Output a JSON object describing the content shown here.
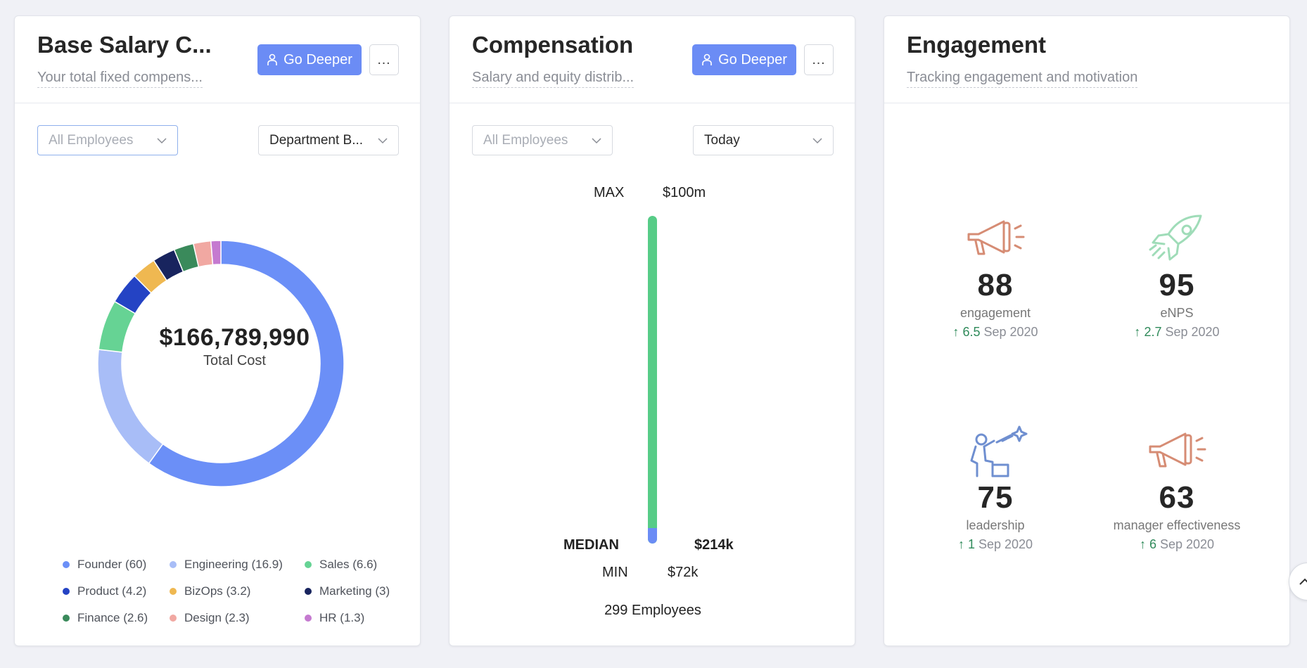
{
  "cards": {
    "base_salary": {
      "title": "Base Salary C...",
      "subtitle": "Your total fixed compens...",
      "deeper_label": "Go Deeper",
      "more_label": "…",
      "filter_employees": "All Employees",
      "filter_group": "Department B...",
      "total_value": "$166,789,990",
      "total_label": "Total Cost"
    },
    "compensation": {
      "title": "Compensation",
      "subtitle": "Salary and equity distrib...",
      "deeper_label": "Go Deeper",
      "more_label": "…",
      "filter_employees": "All Employees",
      "filter_date": "Today",
      "max_label": "MAX",
      "max_value": "$100m",
      "median_label": "MEDIAN",
      "median_value": "$214k",
      "min_label": "MIN",
      "min_value": "$72k",
      "employees": "299 Employees",
      "bar_color": "#57cc87",
      "median_color": "#6b8cf5"
    },
    "engagement": {
      "title": "Engagement",
      "subtitle": "Tracking engagement and motivation",
      "metrics": [
        {
          "value": "88",
          "label": "engagement",
          "delta": "6.5",
          "date": "Sep 2020",
          "icon": "megaphone-icon"
        },
        {
          "value": "95",
          "label": "eNPS",
          "delta": "2.7",
          "date": "Sep 2020",
          "icon": "rocket-icon"
        },
        {
          "value": "75",
          "label": "leadership",
          "delta": "1",
          "date": "Sep 2020",
          "icon": "leadership-icon"
        },
        {
          "value": "63",
          "label": "manager effectiveness",
          "delta": "6",
          "date": "Sep 2020",
          "icon": "megaphone-icon"
        }
      ],
      "arrow": "↑"
    }
  },
  "chart_data": {
    "type": "pie",
    "title": "",
    "categories": [
      "Founder",
      "Engineering",
      "Sales",
      "Product",
      "BizOps",
      "Marketing",
      "Finance",
      "Design",
      "HR"
    ],
    "values": [
      60,
      16.9,
      6.6,
      4.2,
      3.2,
      3,
      2.6,
      2.3,
      1.3
    ],
    "labels": [
      "Founder (60)",
      "Engineering (16.9)",
      "Sales (6.6)",
      "Product (4.2)",
      "BizOps (3.2)",
      "Marketing (3)",
      "Finance (2.6)",
      "Design (2.3)",
      "HR (1.3)"
    ],
    "colors": [
      "#6b8ff7",
      "#a8bdf7",
      "#66d394",
      "#2443c4",
      "#efb851",
      "#18245e",
      "#3a8a5b",
      "#f1a8a2",
      "#c57ad0"
    ],
    "legend": "bottom"
  },
  "colors": {
    "accent": "#6b8cf5",
    "positive": "#2f8a5a",
    "icon_salmon": "#d68c74",
    "icon_mint": "#9fdcb8",
    "icon_blue": "#6f8fd0"
  }
}
